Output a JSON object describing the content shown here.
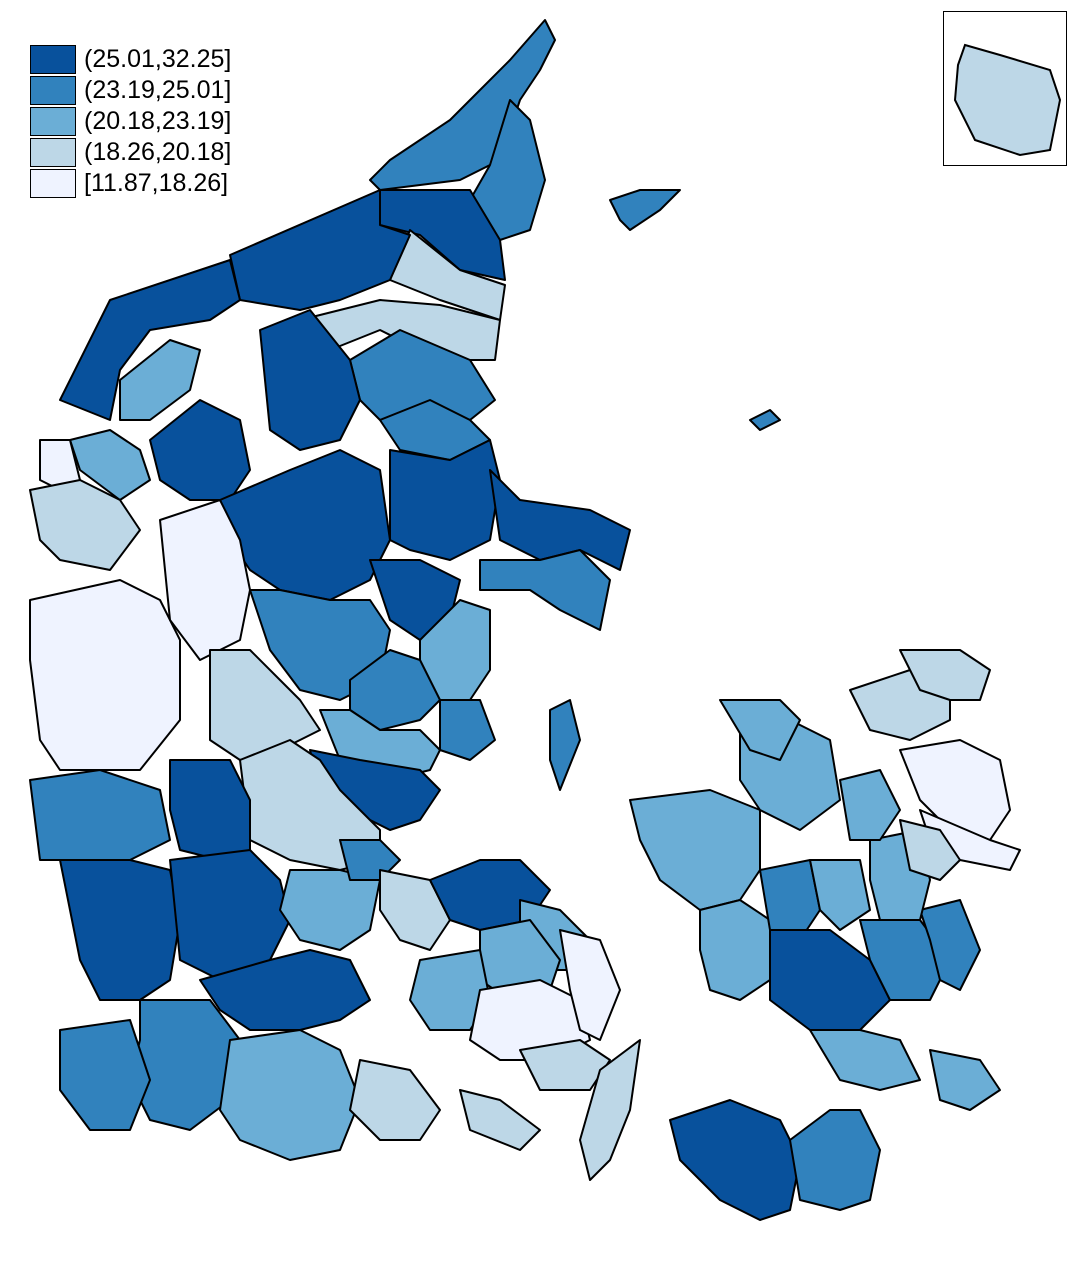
{
  "legend": {
    "classes": [
      {
        "label": "(25.01,32.25]",
        "color": "#08519c"
      },
      {
        "label": "(23.19,25.01]",
        "color": "#3182bd"
      },
      {
        "label": "(20.18,23.19]",
        "color": "#6baed6"
      },
      {
        "label": "(18.26,20.18]",
        "color": "#bdd7e7"
      },
      {
        "label": "[11.87,18.26]",
        "color": "#eff3ff"
      }
    ]
  },
  "map": {
    "region": "Denmark municipalities",
    "boundary_color": "#000000",
    "water_color": "#ffffff",
    "inset": {
      "region": "Bornholm",
      "class": "(18.26,20.18]"
    }
  }
}
